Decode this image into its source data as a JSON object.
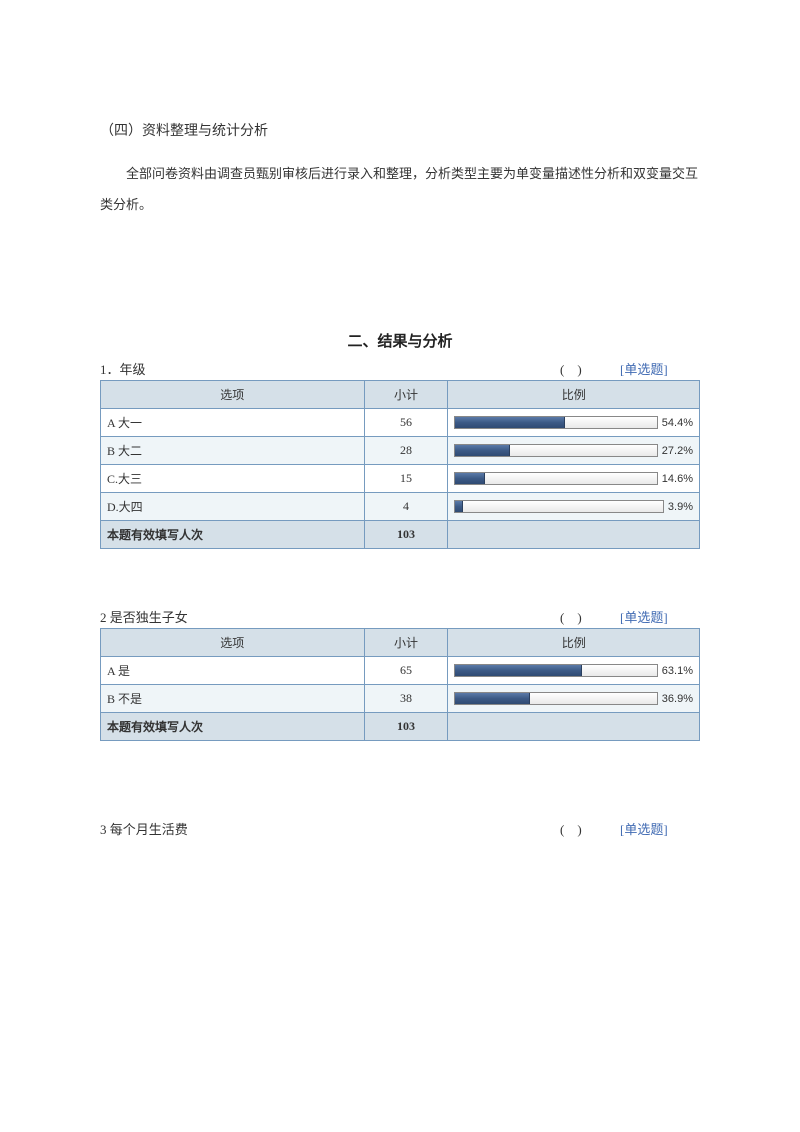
{
  "subHeading": "（四）资料整理与统计分析",
  "bodyText": "全部问卷资料由调查员甄别审核后进行录入和整理，分析类型主要为单变量描述性分析和双变量交互类分析。",
  "sectionTitle": "二、结果与分析",
  "questionTag": "[单选题]",
  "paren": "(　)",
  "headers": {
    "option": "选项",
    "subtotal": "小计",
    "ratio": "比例"
  },
  "totalLabel": "本题有效填写人次",
  "q1": {
    "title": "1．年级",
    "rows": [
      {
        "opt": "A 大一",
        "sub": 56,
        "pct": 54.4,
        "pctLabel": "54.4%"
      },
      {
        "opt": "B 大二",
        "sub": 28,
        "pct": 27.2,
        "pctLabel": "27.2%"
      },
      {
        "opt": "C.大三",
        "sub": 15,
        "pct": 14.6,
        "pctLabel": "14.6%"
      },
      {
        "opt": "D.大四",
        "sub": 4,
        "pct": 3.9,
        "pctLabel": "3.9%"
      }
    ],
    "total": 103
  },
  "q2": {
    "title": "2  是否独生子女",
    "rows": [
      {
        "opt": "A 是",
        "sub": 65,
        "pct": 63.1,
        "pctLabel": "63.1%"
      },
      {
        "opt": "B 不是",
        "sub": 38,
        "pct": 36.9,
        "pctLabel": "36.9%"
      }
    ],
    "total": 103
  },
  "q3": {
    "title": "3 每个月生活费"
  },
  "colors": {
    "border": "#769bbf",
    "headerBg": "#d5e0e8",
    "altBg": "#eff5f8",
    "barFill": "#3c5a86",
    "link": "#416bb3"
  }
}
